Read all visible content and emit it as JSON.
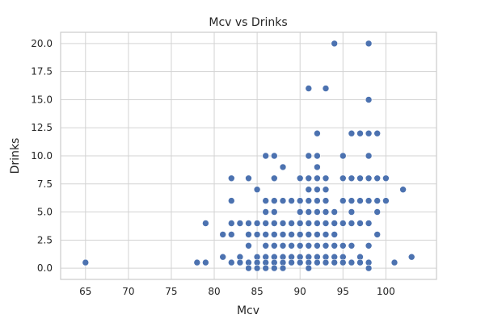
{
  "chart_data": {
    "type": "scatter",
    "title": "Mcv vs Drinks",
    "xlabel": "Mcv",
    "ylabel": "Drinks",
    "xlim": [
      62.1,
      105.9
    ],
    "ylim": [
      -1.0,
      21.0
    ],
    "xticks": [
      65,
      70,
      75,
      80,
      85,
      90,
      95,
      100
    ],
    "yticks": [
      0.0,
      2.5,
      5.0,
      7.5,
      10.0,
      12.5,
      15.0,
      17.5,
      20.0
    ],
    "xtick_labels": [
      "65",
      "70",
      "75",
      "80",
      "85",
      "90",
      "95",
      "100"
    ],
    "ytick_labels": [
      "0.0",
      "2.5",
      "5.0",
      "7.5",
      "10.0",
      "12.5",
      "15.0",
      "17.5",
      "20.0"
    ],
    "grid": true,
    "point_color": "#4c72b0",
    "points": [
      [
        65,
        0.5
      ],
      [
        78,
        0.5
      ],
      [
        79,
        0.5
      ],
      [
        79,
        4
      ],
      [
        81,
        3
      ],
      [
        81,
        1
      ],
      [
        82,
        8
      ],
      [
        82,
        6
      ],
      [
        82,
        4
      ],
      [
        82,
        3
      ],
      [
        82,
        0.5
      ],
      [
        83,
        4
      ],
      [
        83,
        1
      ],
      [
        83,
        0.5
      ],
      [
        84,
        8
      ],
      [
        84,
        4
      ],
      [
        84,
        3
      ],
      [
        84,
        2
      ],
      [
        84,
        0.5
      ],
      [
        84,
        0
      ],
      [
        85,
        7
      ],
      [
        85,
        4
      ],
      [
        85,
        3
      ],
      [
        85,
        1
      ],
      [
        85,
        0.5
      ],
      [
        85,
        0
      ],
      [
        86,
        10
      ],
      [
        86,
        6
      ],
      [
        86,
        5
      ],
      [
        86,
        4
      ],
      [
        86,
        3
      ],
      [
        86,
        2
      ],
      [
        86,
        1
      ],
      [
        86,
        0.5
      ],
      [
        86,
        0
      ],
      [
        87,
        10
      ],
      [
        87,
        8
      ],
      [
        87,
        6
      ],
      [
        87,
        5
      ],
      [
        87,
        4
      ],
      [
        87,
        3
      ],
      [
        87,
        2
      ],
      [
        87,
        1
      ],
      [
        87,
        0.5
      ],
      [
        87,
        0
      ],
      [
        88,
        9
      ],
      [
        88,
        6
      ],
      [
        88,
        4
      ],
      [
        88,
        3
      ],
      [
        88,
        2
      ],
      [
        88,
        1
      ],
      [
        88,
        0.5
      ],
      [
        88,
        0
      ],
      [
        89,
        6
      ],
      [
        89,
        4
      ],
      [
        89,
        3
      ],
      [
        89,
        2
      ],
      [
        89,
        1
      ],
      [
        89,
        0.5
      ],
      [
        90,
        8
      ],
      [
        90,
        6
      ],
      [
        90,
        5
      ],
      [
        90,
        4
      ],
      [
        90,
        3
      ],
      [
        90,
        2
      ],
      [
        90,
        1
      ],
      [
        90,
        0.5
      ],
      [
        91,
        16
      ],
      [
        91,
        10
      ],
      [
        91,
        8
      ],
      [
        91,
        7
      ],
      [
        91,
        6
      ],
      [
        91,
        5
      ],
      [
        91,
        4
      ],
      [
        91,
        3
      ],
      [
        91,
        2
      ],
      [
        91,
        1
      ],
      [
        91,
        0.5
      ],
      [
        91,
        0
      ],
      [
        92,
        12
      ],
      [
        92,
        10
      ],
      [
        92,
        9
      ],
      [
        92,
        8
      ],
      [
        92,
        7
      ],
      [
        92,
        6
      ],
      [
        92,
        5
      ],
      [
        92,
        4
      ],
      [
        92,
        3
      ],
      [
        92,
        2
      ],
      [
        92,
        1
      ],
      [
        92,
        0.5
      ],
      [
        93,
        16
      ],
      [
        93,
        8
      ],
      [
        93,
        7
      ],
      [
        93,
        6
      ],
      [
        93,
        5
      ],
      [
        93,
        4
      ],
      [
        93,
        3
      ],
      [
        93,
        2
      ],
      [
        93,
        1
      ],
      [
        93,
        0.5
      ],
      [
        94,
        20
      ],
      [
        94,
        5
      ],
      [
        94,
        4
      ],
      [
        94,
        3
      ],
      [
        94,
        2
      ],
      [
        94,
        1
      ],
      [
        94,
        0.5
      ],
      [
        95,
        10
      ],
      [
        95,
        8
      ],
      [
        95,
        6
      ],
      [
        95,
        4
      ],
      [
        95,
        2
      ],
      [
        95,
        1
      ],
      [
        95,
        0.5
      ],
      [
        96,
        12
      ],
      [
        96,
        8
      ],
      [
        96,
        6
      ],
      [
        96,
        5
      ],
      [
        96,
        4
      ],
      [
        96,
        2
      ],
      [
        96,
        0.5
      ],
      [
        97,
        12
      ],
      [
        97,
        8
      ],
      [
        97,
        6
      ],
      [
        97,
        4
      ],
      [
        97,
        1
      ],
      [
        97,
        0.5
      ],
      [
        98,
        20
      ],
      [
        98,
        15
      ],
      [
        98,
        12
      ],
      [
        98,
        10
      ],
      [
        98,
        8
      ],
      [
        98,
        6
      ],
      [
        98,
        4
      ],
      [
        98,
        2
      ],
      [
        98,
        0.5
      ],
      [
        98,
        0
      ],
      [
        99,
        12
      ],
      [
        99,
        8
      ],
      [
        99,
        6
      ],
      [
        99,
        5
      ],
      [
        99,
        3
      ],
      [
        100,
        8
      ],
      [
        100,
        6
      ],
      [
        101,
        0.5
      ],
      [
        102,
        7
      ],
      [
        103,
        1
      ]
    ]
  }
}
